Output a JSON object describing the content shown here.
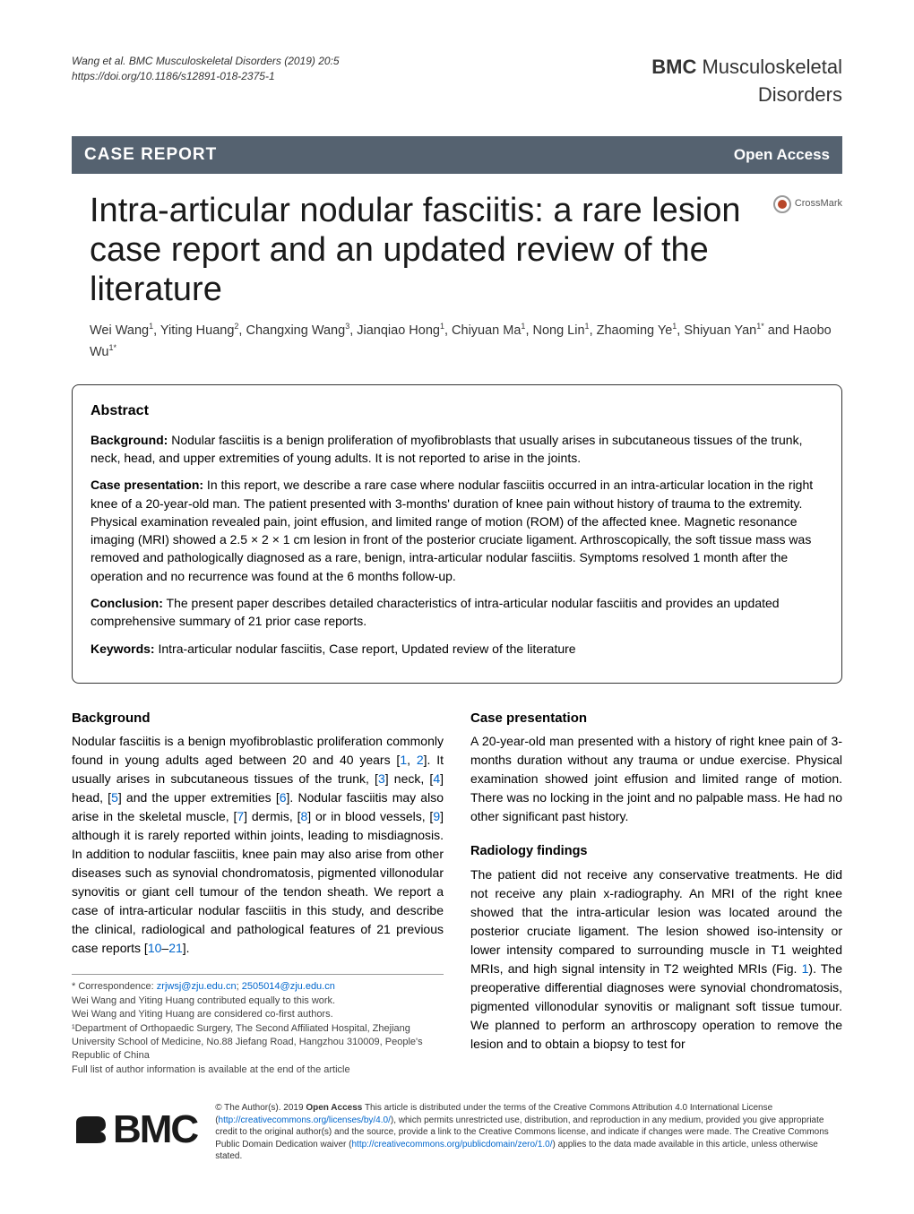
{
  "header": {
    "citation": "Wang et al. BMC Musculoskeletal Disorders          (2019) 20:5",
    "doi": "https://doi.org/10.1186/s12891-018-2375-1",
    "journal_prefix": "BMC",
    "journal_main": " Musculoskeletal",
    "journal_sub": "Disorders"
  },
  "banner": {
    "left": "CASE REPORT",
    "right": "Open Access"
  },
  "title": "Intra-articular nodular fasciitis: a rare lesion case report and an updated review of the literature",
  "crossmark": "CrossMark",
  "authors_html": "Wei Wang<sup>1</sup>, Yiting Huang<sup>2</sup>, Changxing Wang<sup>3</sup>, Jianqiao Hong<sup>1</sup>, Chiyuan Ma<sup>1</sup>, Nong Lin<sup>1</sup>, Zhaoming Ye<sup>1</sup>, Shiyuan Yan<sup>1*</sup> and Haobo Wu<sup>1*</sup>",
  "abstract": {
    "heading": "Abstract",
    "background_label": "Background:",
    "background": " Nodular fasciitis is a benign proliferation of myofibroblasts that usually arises in subcutaneous tissues of the trunk, neck, head, and upper extremities of young adults. It is not reported to arise in the joints.",
    "case_label": "Case presentation:",
    "case": " In this report, we describe a rare case where nodular fasciitis occurred in an intra-articular location in the right knee of a 20-year-old man. The patient presented with 3-months' duration of knee pain without history of trauma to the extremity. Physical examination revealed pain, joint effusion, and limited range of motion (ROM) of the affected knee. Magnetic resonance imaging (MRI) showed a 2.5 × 2 × 1 cm lesion in front of the posterior cruciate ligament. Arthroscopically, the soft tissue mass was removed and pathologically diagnosed as a rare, benign, intra-articular nodular fasciitis. Symptoms resolved 1 month after the operation and no recurrence was found at the 6 months follow-up.",
    "conclusion_label": "Conclusion:",
    "conclusion": " The present paper describes detailed characteristics of intra-articular nodular fasciitis and provides an updated comprehensive summary of 21 prior case reports.",
    "keywords_label": "Keywords:",
    "keywords": " Intra-articular nodular fasciitis, Case report, Updated review of the literature"
  },
  "left_col": {
    "heading": "Background",
    "body_p1a": "Nodular fasciitis is a benign myofibroblastic proliferation commonly found in young adults aged between 20 and 40 years [",
    "r1": "1",
    "body_p1b": ", ",
    "r2": "2",
    "body_p1c": "]. It usually arises in subcutaneous tissues of the trunk, [",
    "r3": "3",
    "body_p1d": "] neck, [",
    "r4": "4",
    "body_p1e": "] head, [",
    "r5": "5",
    "body_p1f": "] and the upper extremities [",
    "r6": "6",
    "body_p1g": "]. Nodular fasciitis may also arise in the skeletal muscle, [",
    "r7": "7",
    "body_p1h": "] dermis, [",
    "r8": "8",
    "body_p1i": "] or in blood vessels, [",
    "r9": "9",
    "body_p1j": "] although it is rarely reported within joints, leading to misdiagnosis. In addition to nodular fasciitis, knee pain may also arise from other diseases such as synovial chondromatosis, pigmented villonodular synovitis or giant cell tumour of the tendon sheath. We report a case of intra-articular nodular fasciitis in this study, and describe the clinical, radiological and pathological features of 21 previous case reports [",
    "r10": "10",
    "body_p1k": "–",
    "r21": "21",
    "body_p1l": "]."
  },
  "correspondence": {
    "line1_prefix": "* Correspondence: ",
    "email1": "zrjwsj@zju.edu.cn",
    "sep": "; ",
    "email2": "2505014@zju.edu.cn",
    "line2": "Wei Wang and Yiting Huang contributed equally to this work.",
    "line3": "Wei Wang and Yiting Huang are considered co-first authors.",
    "line4": "¹Department of Orthopaedic Surgery, The Second Affiliated Hospital, Zhejiang University School of Medicine, No.88 Jiefang Road, Hangzhou 310009, People's Republic of China",
    "line5": "Full list of author information is available at the end of the article"
  },
  "right_col": {
    "heading1": "Case presentation",
    "p1": "A 20-year-old man presented with a history of right knee pain of 3-months duration without any trauma or undue exercise. Physical examination showed joint effusion and limited range of motion. There was no locking in the joint and no palpable mass. He had no other significant past history.",
    "heading2": "Radiology findings",
    "p2a": "The patient did not receive any conservative treatments. He did not receive any plain x-radiography. An MRI of the right knee showed that the intra-articular lesion was located around the posterior cruciate ligament. The lesion showed iso-intensity or lower intensity compared to surrounding muscle in T1 weighted MRIs, and high signal intensity in T2 weighted MRIs (Fig. ",
    "fig1": "1",
    "p2b": "). The preoperative differential diagnoses were synovial chondromatosis, pigmented villonodular synovitis or malignant soft tissue tumour. We planned to perform an arthroscopy operation to remove the lesion and to obtain a biopsy to test for"
  },
  "footer": {
    "logo": "BMC",
    "license_a": "© The Author(s). 2019 ",
    "license_bold": "Open Access",
    "license_b": " This article is distributed under the terms of the Creative Commons Attribution 4.0 International License (",
    "link1": "http://creativecommons.org/licenses/by/4.0/",
    "license_c": "), which permits unrestricted use, distribution, and reproduction in any medium, provided you give appropriate credit to the original author(s) and the source, provide a link to the Creative Commons license, and indicate if changes were made. The Creative Commons Public Domain Dedication waiver (",
    "link2": "http://creativecommons.org/publicdomain/zero/1.0/",
    "license_d": ") applies to the data made available in this article, unless otherwise stated."
  },
  "colors": {
    "banner_bg": "#556270",
    "link": "#0066cc",
    "text": "#000000"
  }
}
